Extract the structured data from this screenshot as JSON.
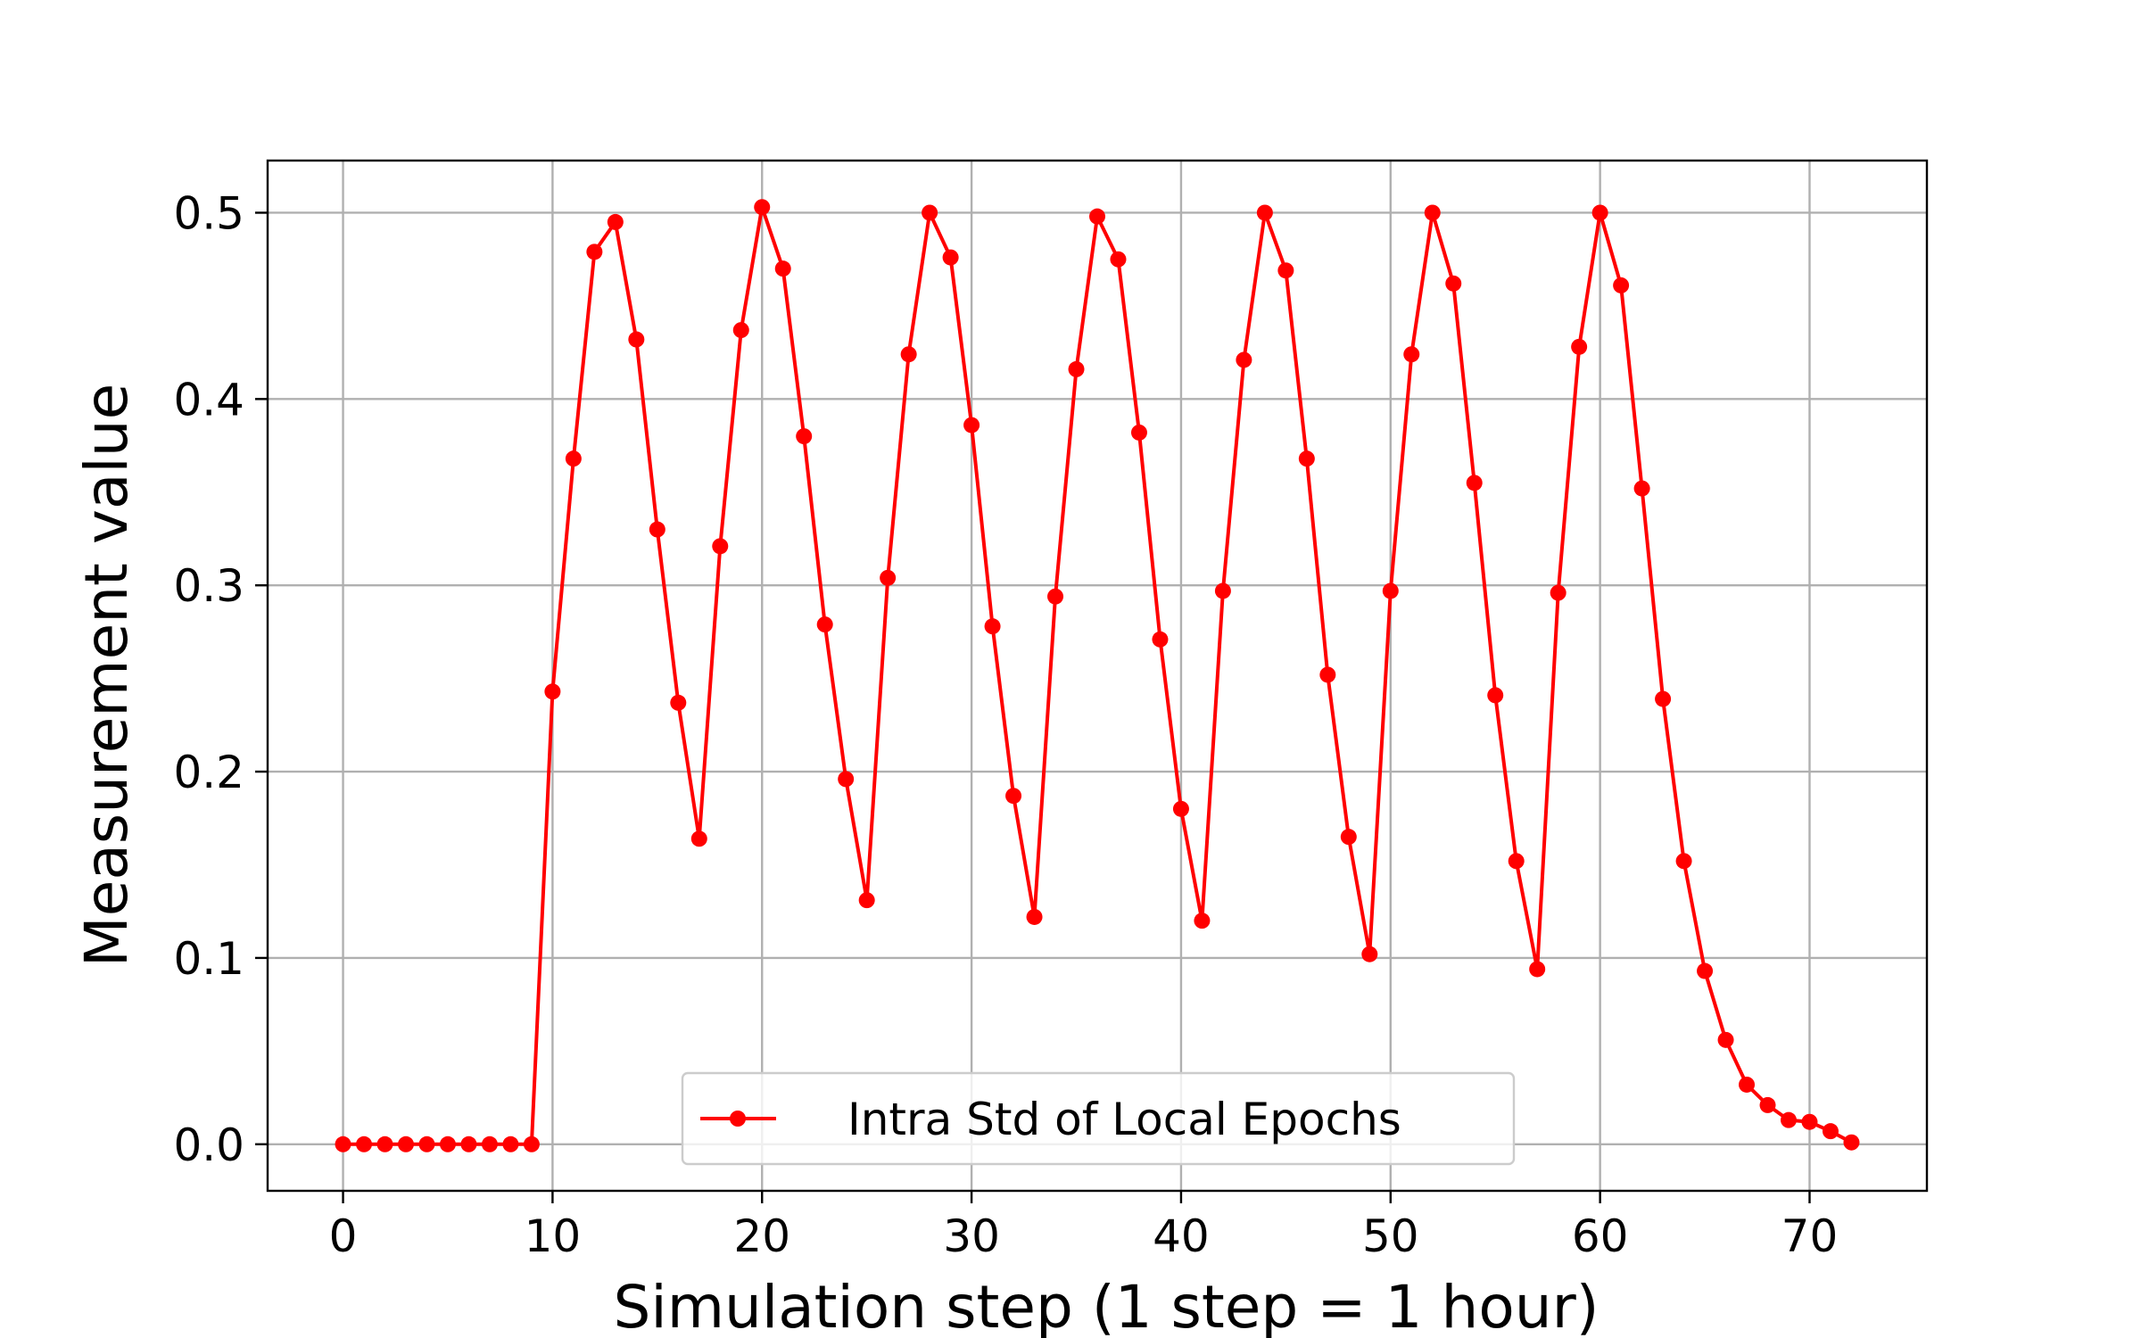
{
  "chart_data": {
    "type": "line",
    "xlabel": "Simulation step (1 step = 1 hour)",
    "ylabel": "Measurement value",
    "xlim": [
      -3.6,
      75.6
    ],
    "ylim": [
      -0.025,
      0.528
    ],
    "xticks": [
      0,
      10,
      20,
      30,
      40,
      50,
      60,
      70
    ],
    "yticks": [
      0.0,
      0.1,
      0.2,
      0.3,
      0.4,
      0.5
    ],
    "xtick_labels": [
      "0",
      "10",
      "20",
      "30",
      "40",
      "50",
      "60",
      "70"
    ],
    "ytick_labels": [
      "0.0",
      "0.1",
      "0.2",
      "0.3",
      "0.4",
      "0.5"
    ],
    "grid": true,
    "legend_position": "bottom-center",
    "series": [
      {
        "name": "Intra Std of Local Epochs",
        "color": "#ff0000",
        "marker": "circle",
        "x": [
          0,
          1,
          2,
          3,
          4,
          5,
          6,
          7,
          8,
          9,
          10,
          11,
          12,
          13,
          14,
          15,
          16,
          17,
          18,
          19,
          20,
          21,
          22,
          23,
          24,
          25,
          26,
          27,
          28,
          29,
          30,
          31,
          32,
          33,
          34,
          35,
          36,
          37,
          38,
          39,
          40,
          41,
          42,
          43,
          44,
          45,
          46,
          47,
          48,
          49,
          50,
          51,
          52,
          53,
          54,
          55,
          56,
          57,
          58,
          59,
          60,
          61,
          62,
          63,
          64,
          65,
          66,
          67,
          68,
          69,
          70,
          71,
          72
        ],
        "y": [
          0.0,
          0.0,
          0.0,
          0.0,
          0.0,
          0.0,
          0.0,
          0.0,
          0.0,
          0.0,
          0.243,
          0.368,
          0.479,
          0.495,
          0.432,
          0.33,
          0.237,
          0.164,
          0.321,
          0.437,
          0.503,
          0.47,
          0.38,
          0.279,
          0.196,
          0.131,
          0.304,
          0.424,
          0.5,
          0.476,
          0.386,
          0.278,
          0.187,
          0.122,
          0.294,
          0.416,
          0.498,
          0.475,
          0.382,
          0.271,
          0.18,
          0.12,
          0.297,
          0.421,
          0.5,
          0.469,
          0.368,
          0.252,
          0.165,
          0.102,
          0.297,
          0.424,
          0.5,
          0.462,
          0.355,
          0.241,
          0.152,
          0.094,
          0.296,
          0.428,
          0.5,
          0.461,
          0.352,
          0.239,
          0.152,
          0.093,
          0.056,
          0.032,
          0.021,
          0.013,
          0.012,
          0.007,
          0.001
        ]
      }
    ]
  }
}
